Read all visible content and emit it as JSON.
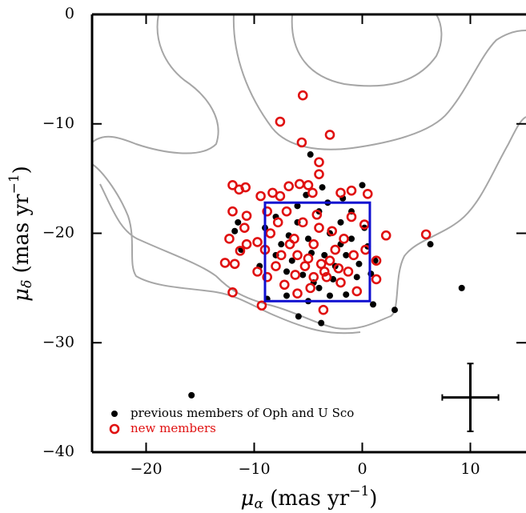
{
  "chart_data": {
    "type": "scatter",
    "xlabel": [
      "μ",
      "α",
      " (mas yr",
      "−1",
      ")"
    ],
    "ylabel": [
      "μ",
      "δ",
      " (mas yr",
      "−1",
      ")"
    ],
    "xlim": [
      -25,
      15
    ],
    "ylim": [
      -40,
      0
    ],
    "xticks": [
      {
        "value": -20,
        "label": "−20"
      },
      {
        "value": -10,
        "label": "−10"
      },
      0,
      10
    ],
    "yticks": [
      0,
      {
        "value": -10,
        "label": "−10"
      },
      {
        "value": -20,
        "label": "−20"
      },
      {
        "value": -30,
        "label": "−30"
      },
      {
        "value": -40,
        "label": "−40"
      }
    ],
    "grid": false,
    "legend": "lower left",
    "box": {
      "xlim": [
        -9,
        0.7
      ],
      "ylim": [
        -26.2,
        -17.2
      ],
      "color": "#1010d0"
    },
    "error_bar": {
      "x": 10,
      "y": -35,
      "xerr": 2.6,
      "yerr": 3.1,
      "color": "#000000"
    },
    "series": [
      {
        "name": "previous members of Oph and U Sco",
        "color": "#000000",
        "marker": "filled",
        "x": [
          -15.8,
          9.2,
          6.3,
          3,
          1,
          -3.8,
          -5.9,
          -4.8,
          -3.7,
          0,
          -11.8,
          -11.5,
          -11.2,
          -8.8,
          -7,
          -5,
          -3,
          -1.5,
          0.8,
          1.2,
          0.5,
          -1,
          -2,
          -4,
          -6,
          -8,
          -9,
          -7.5,
          -6.5,
          -5.5,
          -4.5,
          -3.5,
          -2.5,
          -1.5,
          -0.5,
          -2,
          -3,
          -5,
          -6,
          -7,
          -8,
          -4,
          -1,
          -9.5,
          -3.2,
          -5.2,
          -1.8,
          0.2,
          -0.3,
          -6.8,
          -4.7,
          -2.7
        ],
        "values": [
          -34.8,
          -25,
          -21,
          -27,
          -26.5,
          -28.2,
          -27.6,
          -12.8,
          -15.8,
          -15.6,
          -19.8,
          -19,
          -21.5,
          -26,
          -25.7,
          -26.2,
          -25.7,
          -25.6,
          -23.7,
          -22.5,
          -21.2,
          -20.5,
          -19,
          -18,
          -17.5,
          -18.5,
          -19.5,
          -21,
          -22.5,
          -23.8,
          -24.5,
          -22,
          -23,
          -22,
          -24,
          -21,
          -20,
          -20.5,
          -19,
          -23.5,
          -22,
          -25,
          -18,
          -23,
          -17.2,
          -16.5,
          -16.8,
          -19.5,
          -22.8,
          -20.2,
          -21.8,
          -24.2
        ]
      },
      {
        "name": "new members",
        "color": "#e01010",
        "marker": "open",
        "x": [
          -5.5,
          -7.6,
          -5.6,
          -3,
          -4,
          -4,
          -12,
          -11.4,
          -10.8,
          -6.8,
          -5.8,
          -5,
          -4.6,
          -9.4,
          -8.3,
          -7.6,
          -2,
          -1,
          0.5,
          -12,
          -10.7,
          -10.9,
          -12.3,
          -10.7,
          -11.3,
          -12.7,
          -11.8,
          -9.7,
          -9,
          -8.5,
          -7.8,
          -7,
          -6.3,
          -6,
          -5.3,
          -4.5,
          -4,
          -3.5,
          -3,
          -2.5,
          -2,
          -1.3,
          -0.5,
          0.3,
          0.2,
          1.3,
          1.3,
          2.2,
          5.9,
          -12,
          -9.3,
          -6,
          -3.6,
          -4.8,
          -7.2,
          -8.8,
          -3.3,
          -5,
          -7.5,
          -6.7,
          -5.5,
          -4.2,
          -2.8,
          -1.7,
          -0.8,
          -3.8,
          -2.2,
          -4.5,
          -6.2,
          -8,
          -8.8,
          -9.7,
          -1
        ],
        "values": [
          -7.4,
          -9.8,
          -11.7,
          -11,
          -13.5,
          -14.6,
          -15.6,
          -16,
          -15.8,
          -15.7,
          -15.5,
          -15.6,
          -16.3,
          -16.6,
          -16.3,
          -16.6,
          -16.3,
          -16.1,
          -16.4,
          -18,
          -18.4,
          -19.5,
          -20.5,
          -21,
          -21.6,
          -22.7,
          -22.8,
          -23.5,
          -21.5,
          -20,
          -19,
          -18,
          -20.5,
          -22,
          -23,
          -21,
          -19.5,
          -23.5,
          -22.5,
          -21.5,
          -24.5,
          -23.5,
          -25.3,
          -21.5,
          -19.2,
          -22.5,
          -24.2,
          -20.2,
          -20.1,
          -25.4,
          -26.6,
          -25.5,
          -27,
          -25,
          -24.7,
          -24,
          -24,
          -22.3,
          -22,
          -21,
          -19,
          -18.3,
          -19.8,
          -20.5,
          -22,
          -22.8,
          -23.2,
          -24,
          -23.8,
          -23,
          -18,
          -20.8,
          -18.5
        ]
      }
    ]
  }
}
